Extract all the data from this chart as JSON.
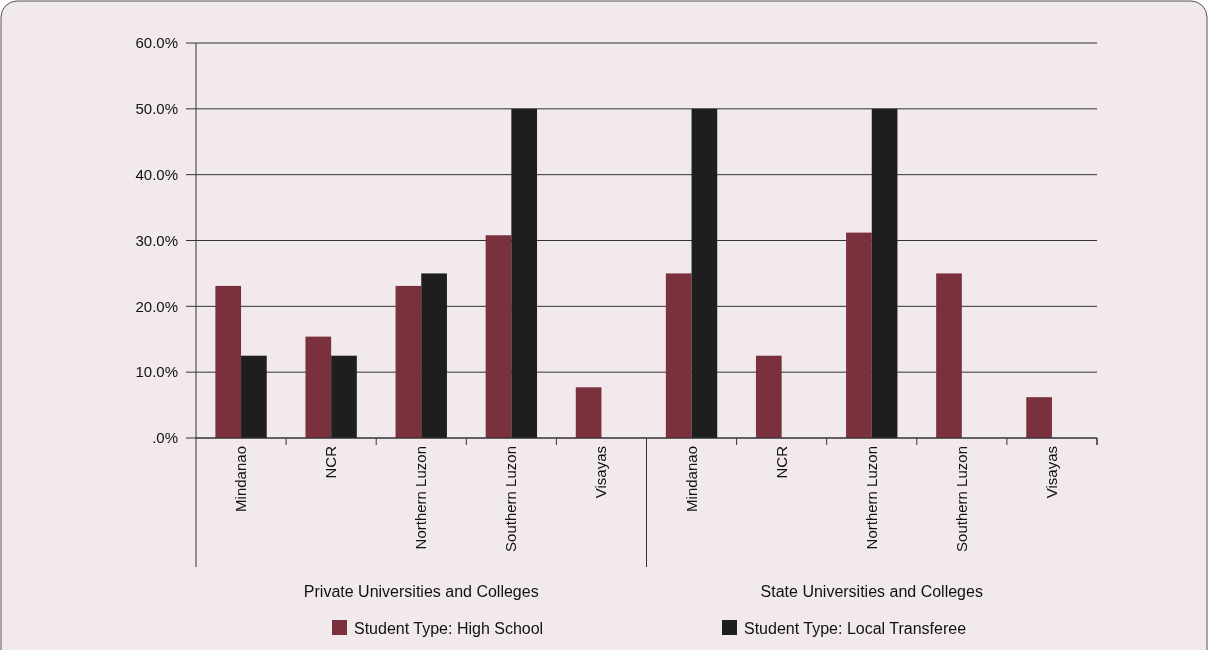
{
  "chart_data": {
    "type": "bar",
    "categories": [
      "Mindanao",
      "NCR",
      "Northern Luzon",
      "Southern Luzon",
      "Visayas",
      "Mindanao",
      "NCR",
      "Northern Luzon",
      "Southern Luzon",
      "Visayas"
    ],
    "series": [
      {
        "name": "Student Type:  High School",
        "color": "#7a303d",
        "values": [
          23.1,
          15.4,
          23.1,
          30.8,
          7.7,
          25.0,
          12.5,
          31.2,
          25.0,
          6.2
        ]
      },
      {
        "name": "Student Type:  Local Transferee",
        "color": "#1e1e1e",
        "values": [
          12.5,
          12.5,
          25.0,
          50.0,
          null,
          50.0,
          null,
          50.0,
          null,
          null
        ]
      }
    ],
    "annotations": [
      "Private Universities and Colleges",
      "State Universities and Colleges"
    ],
    "ylim": [
      0,
      60
    ],
    "yticks": [
      {
        "value": 0,
        "label": ".0%"
      },
      {
        "value": 10,
        "label": "10.0%"
      },
      {
        "value": 20,
        "label": "20.0%"
      },
      {
        "value": 30,
        "label": "30.0%"
      },
      {
        "value": 40,
        "label": "40.0%"
      },
      {
        "value": 50,
        "label": "50.0%"
      },
      {
        "value": 60,
        "label": "60.0%"
      }
    ],
    "grid": "y",
    "legend": "bottom"
  }
}
